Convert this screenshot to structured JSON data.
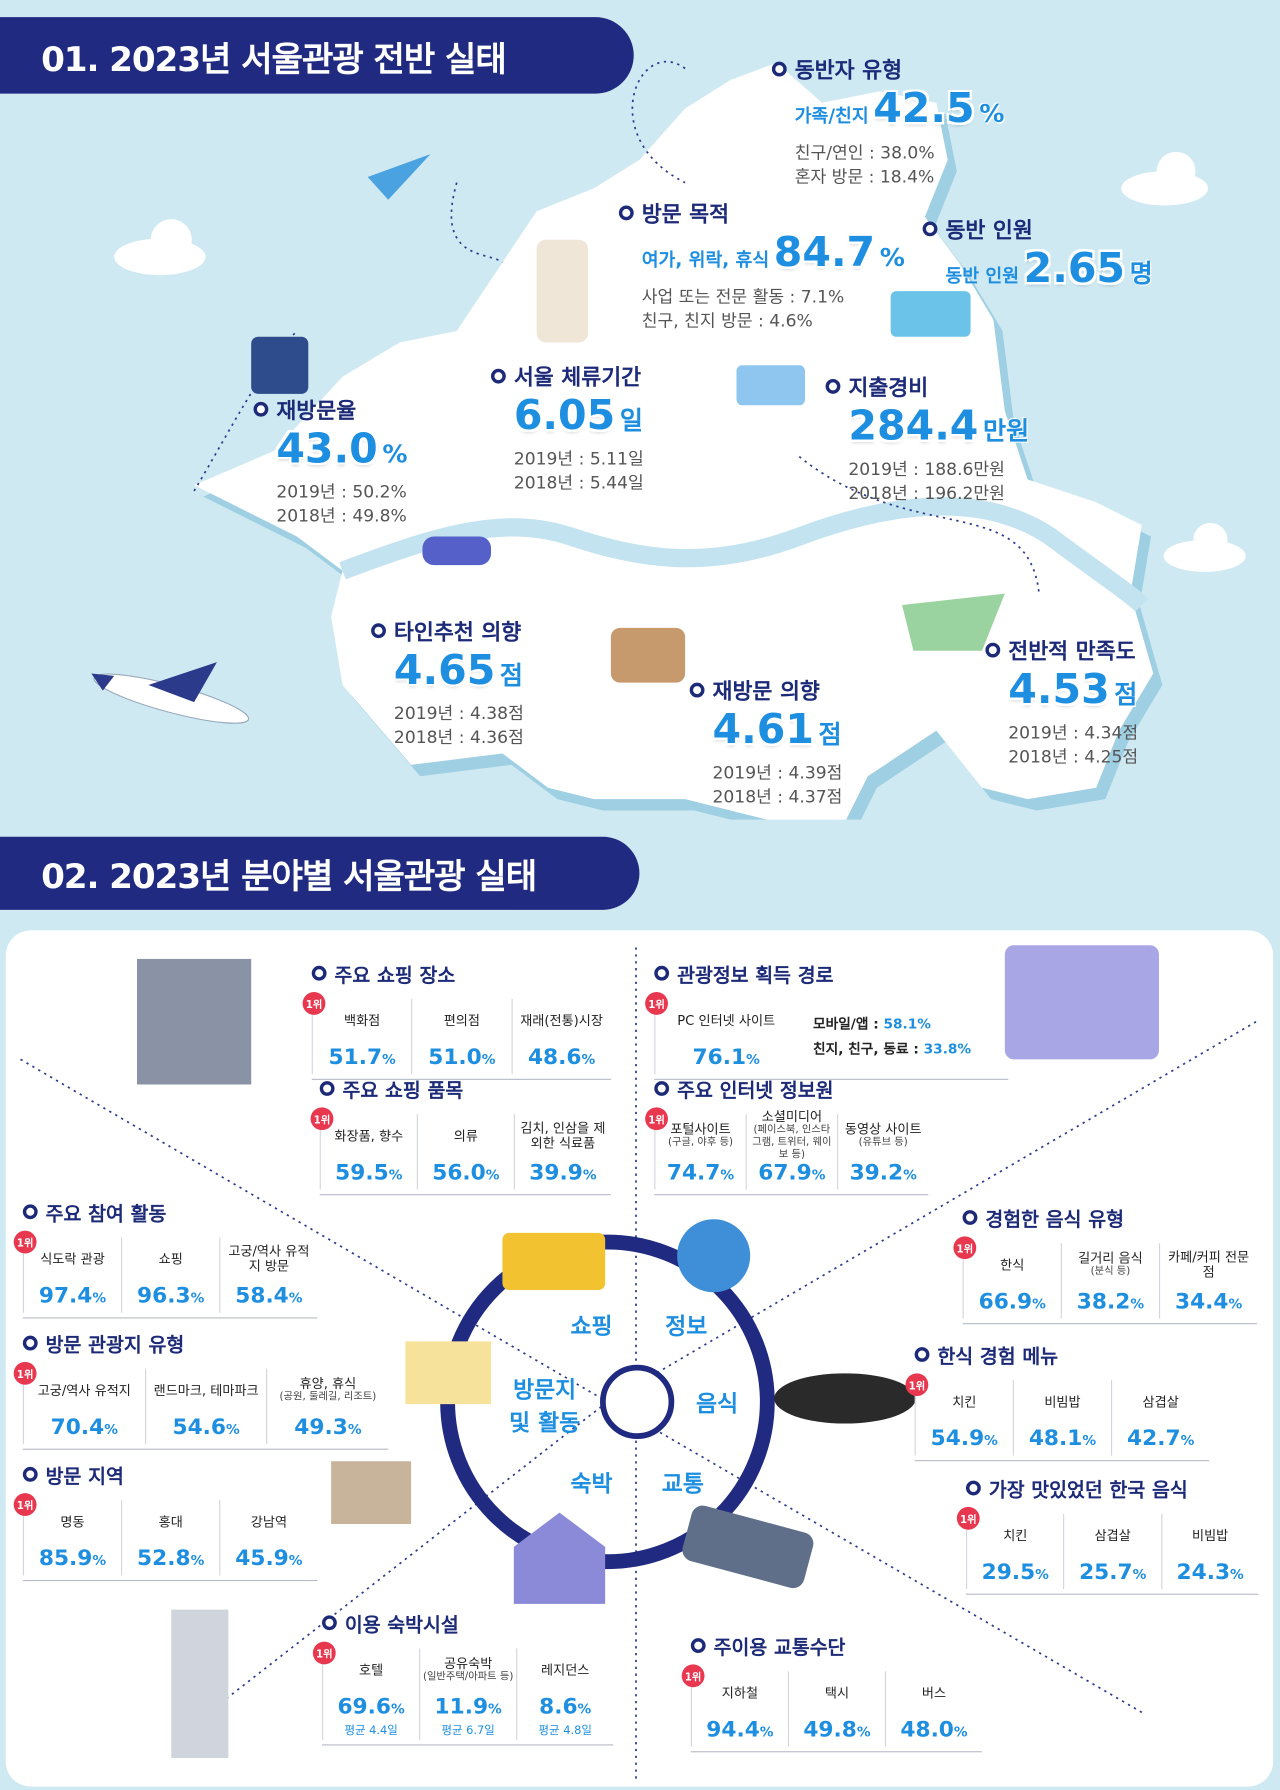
{
  "section1": {
    "title": "01. 2023년 서울관광 전반 실태",
    "items": [
      {
        "title": "동반자 유형",
        "main_label": "가족/친지",
        "value": "42.5",
        "unit": "%",
        "lines": [
          "친구/연인 : 38.0%",
          "혼자 방문 : 18.4%"
        ]
      },
      {
        "title": "방문 목적",
        "main_label": "여가, 위락, 휴식",
        "value": "84.7",
        "unit": "%",
        "lines": [
          "사업 또는 전문 활동 : 7.1%",
          "친구, 친지 방문 : 4.6%"
        ]
      },
      {
        "title": "동반 인원",
        "main_label": "동반 인원",
        "value": "2.65",
        "unit": "명",
        "lines": []
      },
      {
        "title": "지출경비",
        "value": "284.4",
        "unit": "만원",
        "lines": [
          "2019년 : 188.6만원",
          "2018년 : 196.2만원"
        ]
      },
      {
        "title": "서울 체류기간",
        "value": "6.05",
        "unit": "일",
        "lines": [
          "2019년 : 5.11일",
          "2018년 : 5.44일"
        ]
      },
      {
        "title": "재방문율",
        "value": "43.0",
        "unit": "%",
        "lines": [
          "2019년 : 50.2%",
          "2018년 : 49.8%"
        ]
      },
      {
        "title": "타인추천 의향",
        "value": "4.65",
        "unit": "점",
        "lines": [
          "2019년 : 4.38점",
          "2018년 : 4.36점"
        ]
      },
      {
        "title": "재방문 의향",
        "value": "4.61",
        "unit": "점",
        "lines": [
          "2019년 : 4.39점",
          "2018년 : 4.37점"
        ]
      },
      {
        "title": "전반적 만족도",
        "value": "4.53",
        "unit": "점",
        "lines": [
          "2019년 : 4.34점",
          "2018년 : 4.25점"
        ]
      }
    ]
  },
  "section2": {
    "title": "02. 2023년 분야별 서울관광 실태",
    "center": [
      "쇼핑",
      "정보",
      "음식",
      "교통",
      "숙박",
      "방문지 및 활동"
    ],
    "panels": [
      {
        "title": "주요 쇼핑 장소",
        "rank": "1위",
        "columns": [
          {
            "label": "백화점",
            "value": "51.7",
            "unit": "%"
          },
          {
            "label": "편의점",
            "value": "51.0",
            "unit": "%"
          },
          {
            "label": "재래(전통)시장",
            "value": "48.6",
            "unit": "%"
          }
        ]
      },
      {
        "title": "주요 쇼핑 품목",
        "rank": "1위",
        "columns": [
          {
            "label": "화장품, 향수",
            "value": "59.5",
            "unit": "%"
          },
          {
            "label": "의류",
            "value": "56.0",
            "unit": "%"
          },
          {
            "label": "김치, 인삼을 제외한 식료품",
            "value": "39.9",
            "unit": "%"
          }
        ]
      },
      {
        "title": "관광정보 획득 경로",
        "rank": "1위",
        "columns": [
          {
            "label": "PC 인터넷 사이트",
            "value": "76.1",
            "unit": "%"
          }
        ],
        "side": [
          {
            "label": "모바일/앱 :",
            "value": "58.1%"
          },
          {
            "label": "친지, 친구, 동료 :",
            "value": "33.8%"
          }
        ]
      },
      {
        "title": "주요 인터넷 정보원",
        "rank": "1위",
        "columns": [
          {
            "label": "포털사이트",
            "sub": "(구글, 야후 등)",
            "value": "74.7",
            "unit": "%"
          },
          {
            "label": "소셜미디어",
            "sub": "(페이스북, 인스타그램, 트위터, 웨이보 등)",
            "value": "67.9",
            "unit": "%"
          },
          {
            "label": "동영상 사이트",
            "sub": "(유튜브 등)",
            "value": "39.2",
            "unit": "%"
          }
        ]
      },
      {
        "title": "주요 참여 활동",
        "rank": "1위",
        "columns": [
          {
            "label": "식도락 관광",
            "value": "97.4",
            "unit": "%"
          },
          {
            "label": "쇼핑",
            "value": "96.3",
            "unit": "%"
          },
          {
            "label": "고궁/역사 유적지 방문",
            "value": "58.4",
            "unit": "%"
          }
        ]
      },
      {
        "title": "방문 관광지 유형",
        "rank": "1위",
        "columns": [
          {
            "label": "고궁/역사 유적지",
            "value": "70.4",
            "unit": "%"
          },
          {
            "label": "랜드마크, 테마파크",
            "value": "54.6",
            "unit": "%"
          },
          {
            "label": "휴양, 휴식",
            "sub": "(공원, 둘레길, 리조트)",
            "value": "49.3",
            "unit": "%"
          }
        ]
      },
      {
        "title": "방문 지역",
        "rank": "1위",
        "columns": [
          {
            "label": "명동",
            "value": "85.9",
            "unit": "%"
          },
          {
            "label": "홍대",
            "value": "52.8",
            "unit": "%"
          },
          {
            "label": "강남역",
            "value": "45.9",
            "unit": "%"
          }
        ]
      },
      {
        "title": "경험한 음식 유형",
        "rank": "1위",
        "columns": [
          {
            "label": "한식",
            "value": "66.9",
            "unit": "%"
          },
          {
            "label": "길거리 음식",
            "sub": "(분식 등)",
            "value": "38.2",
            "unit": "%"
          },
          {
            "label": "카페/커피 전문점",
            "value": "34.4",
            "unit": "%"
          }
        ]
      },
      {
        "title": "한식 경험 메뉴",
        "rank": "1위",
        "columns": [
          {
            "label": "치킨",
            "value": "54.9",
            "unit": "%"
          },
          {
            "label": "비빔밥",
            "value": "48.1",
            "unit": "%"
          },
          {
            "label": "삼겹살",
            "value": "42.7",
            "unit": "%"
          }
        ]
      },
      {
        "title": "가장 맛있었던 한국 음식",
        "rank": "1위",
        "columns": [
          {
            "label": "치킨",
            "value": "29.5",
            "unit": "%"
          },
          {
            "label": "삼겹살",
            "value": "25.7",
            "unit": "%"
          },
          {
            "label": "비빔밥",
            "value": "24.3",
            "unit": "%"
          }
        ]
      },
      {
        "title": "이용 숙박시설",
        "rank": "1위",
        "columns": [
          {
            "label": "호텔",
            "value": "69.6",
            "unit": "%",
            "note": "평균 4.4일"
          },
          {
            "label": "공유숙박",
            "sub": "(일반주택/아파트 등)",
            "value": "11.9",
            "unit": "%",
            "note": "평균 6.7일"
          },
          {
            "label": "레지던스",
            "value": "8.6",
            "unit": "%",
            "note": "평균 4.8일"
          }
        ]
      },
      {
        "title": "주이용 교통수단",
        "rank": "1위",
        "columns": [
          {
            "label": "지하철",
            "value": "94.4",
            "unit": "%"
          },
          {
            "label": "택시",
            "value": "49.8",
            "unit": "%"
          },
          {
            "label": "버스",
            "value": "48.0",
            "unit": "%"
          }
        ]
      }
    ]
  }
}
